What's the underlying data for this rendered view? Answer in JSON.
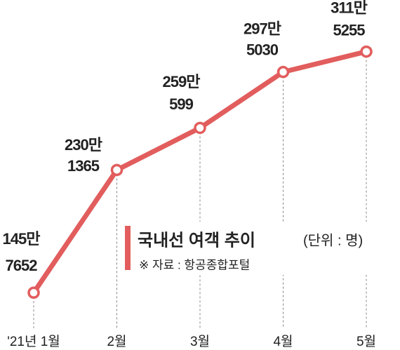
{
  "chart_data": {
    "type": "line",
    "title": "국내선 여객 추이",
    "unit_label": "(단위 : 명)",
    "source": "※ 자료 : 항공종합포털",
    "categories": [
      "'21년 1월",
      "2월",
      "3월",
      "4월",
      "5월"
    ],
    "values": [
      1457652,
      2301365,
      2590599,
      2975030,
      3115255
    ],
    "value_labels": [
      [
        "145만",
        "7652"
      ],
      [
        "230만",
        "1365"
      ],
      [
        "259만",
        "599"
      ],
      [
        "297만",
        "5030"
      ],
      [
        "311만",
        "5255"
      ]
    ],
    "color": "#e25d5d",
    "ylim": [
      1300000,
      3200000
    ]
  }
}
